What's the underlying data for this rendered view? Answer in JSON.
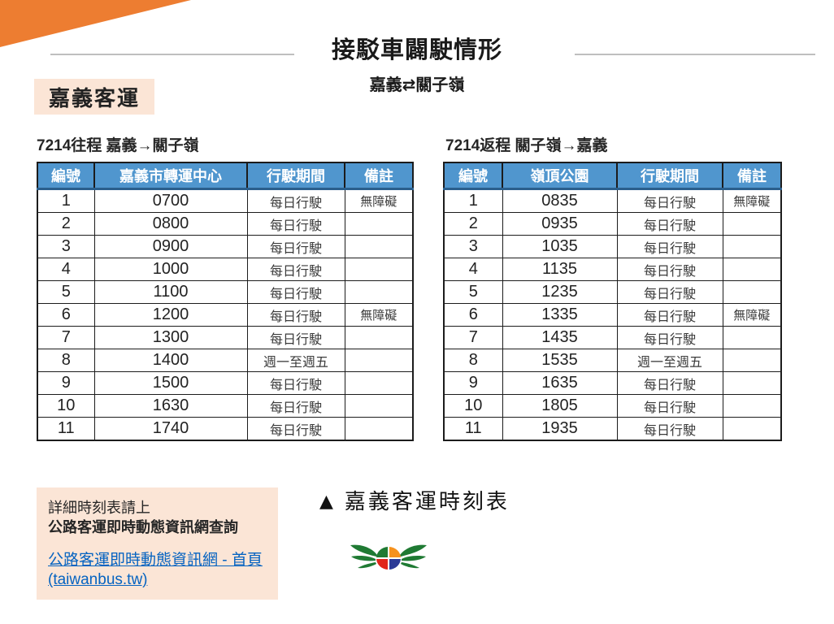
{
  "page": {
    "title": "接駁車闢駛情形",
    "subtitle": "嘉義⇄關子嶺",
    "operator_badge": "嘉義客運"
  },
  "tables": {
    "outbound": {
      "title": "7214往程 嘉義→關子嶺",
      "headers": [
        "編號",
        "嘉義市轉運中心",
        "行駛期間",
        "備註"
      ],
      "rows": [
        [
          "1",
          "0700",
          "每日行駛",
          "無障礙"
        ],
        [
          "2",
          "0800",
          "每日行駛",
          ""
        ],
        [
          "3",
          "0900",
          "每日行駛",
          ""
        ],
        [
          "4",
          "1000",
          "每日行駛",
          ""
        ],
        [
          "5",
          "1100",
          "每日行駛",
          ""
        ],
        [
          "6",
          "1200",
          "每日行駛",
          "無障礙"
        ],
        [
          "7",
          "1300",
          "每日行駛",
          ""
        ],
        [
          "8",
          "1400",
          "週一至週五",
          ""
        ],
        [
          "9",
          "1500",
          "每日行駛",
          ""
        ],
        [
          "10",
          "1630",
          "每日行駛",
          ""
        ],
        [
          "11",
          "1740",
          "每日行駛",
          ""
        ]
      ]
    },
    "return": {
      "title": "7214返程 關子嶺→嘉義",
      "headers": [
        "編號",
        "嶺頂公園",
        "行駛期間",
        "備註"
      ],
      "rows": [
        [
          "1",
          "0835",
          "每日行駛",
          "無障礙"
        ],
        [
          "2",
          "0935",
          "每日行駛",
          ""
        ],
        [
          "3",
          "1035",
          "每日行駛",
          ""
        ],
        [
          "4",
          "1135",
          "每日行駛",
          ""
        ],
        [
          "5",
          "1235",
          "每日行駛",
          ""
        ],
        [
          "6",
          "1335",
          "每日行駛",
          "無障礙"
        ],
        [
          "7",
          "1435",
          "每日行駛",
          ""
        ],
        [
          "8",
          "1535",
          "週一至週五",
          ""
        ],
        [
          "9",
          "1635",
          "每日行駛",
          ""
        ],
        [
          "10",
          "1805",
          "每日行駛",
          ""
        ],
        [
          "11",
          "1935",
          "每日行駛",
          ""
        ]
      ]
    }
  },
  "footer": {
    "note_line1": "詳細時刻表請上",
    "note_line2": "公路客運即時動態資訊網查詢",
    "link_text": "公路客運即時動態資訊網 - 首頁 (taiwanbus.tw)",
    "caption_marker": "▲",
    "caption_text": "嘉義客運時刻表"
  },
  "icons": {
    "corner_accent": "orange-corner-triangle",
    "logo": "chiayi-bus-wings-logo"
  },
  "colors": {
    "accent_orange": "#ED7D31",
    "peach_bg": "#FBE5D6",
    "header_blue": "#5096CE",
    "header_underline": "#2A5E8C",
    "link_blue": "#0563C1",
    "logo_green": "#1F7A33",
    "logo_orange": "#F6921E",
    "logo_red": "#E1251B",
    "logo_blue": "#2B3A96"
  }
}
